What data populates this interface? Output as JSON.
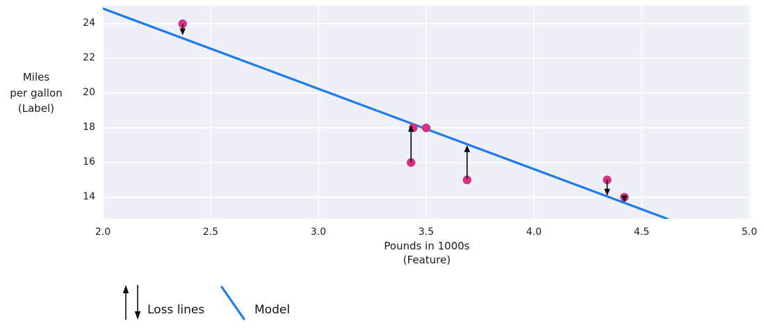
{
  "chart_data": {
    "type": "scatter",
    "title": "",
    "xlabel_lines": [
      "Pounds in 1000s",
      "(Feature)"
    ],
    "ylabel_lines": [
      "Miles",
      "per gallon",
      "(Label)"
    ],
    "xlim": [
      2.0,
      5.0
    ],
    "ylim": [
      12.75,
      25.05
    ],
    "xticks": [
      2.0,
      2.5,
      3.0,
      3.5,
      4.0,
      4.5,
      5.0
    ],
    "xtick_labels": [
      "2.0",
      "2.5",
      "3.0",
      "3.5",
      "4.0",
      "4.5",
      "5.0"
    ],
    "yticks": [
      14,
      16,
      18,
      20,
      22,
      24
    ],
    "ytick_labels": [
      "14",
      "16",
      "18",
      "20",
      "22",
      "24"
    ],
    "grid": true,
    "points": [
      {
        "x": 2.37,
        "y": 24
      },
      {
        "x": 3.44,
        "y": 18
      },
      {
        "x": 3.5,
        "y": 18
      },
      {
        "x": 3.43,
        "y": 16
      },
      {
        "x": 3.69,
        "y": 15
      },
      {
        "x": 4.34,
        "y": 15
      },
      {
        "x": 4.42,
        "y": 14
      }
    ],
    "model_line": {
      "x1": 2.0,
      "y1": 24.88,
      "x2": 4.62,
      "y2": 12.75
    },
    "loss_arrows": [
      {
        "x": 2.37,
        "from": 24.0,
        "to": 23.33,
        "direction": "down"
      },
      {
        "x": 3.43,
        "from": 16.0,
        "to": 18.18,
        "direction": "up"
      },
      {
        "x": 3.69,
        "from": 15.05,
        "to": 17.0,
        "direction": "up"
      },
      {
        "x": 4.34,
        "from": 15.0,
        "to": 14.08,
        "direction": "down"
      },
      {
        "x": 4.42,
        "from": 14.0,
        "to": 13.7,
        "direction": "down"
      }
    ],
    "legend": [
      {
        "symbol": "loss-arrows",
        "label": "Loss lines"
      },
      {
        "symbol": "model-line",
        "label": "Model"
      }
    ],
    "colors": {
      "point": "#d63384",
      "line": "#1d79f2",
      "arrow": "#0d0d0d",
      "plot_bg": "#edf0f7",
      "grid": "#ffffff",
      "text": "#1a1a1a"
    }
  }
}
